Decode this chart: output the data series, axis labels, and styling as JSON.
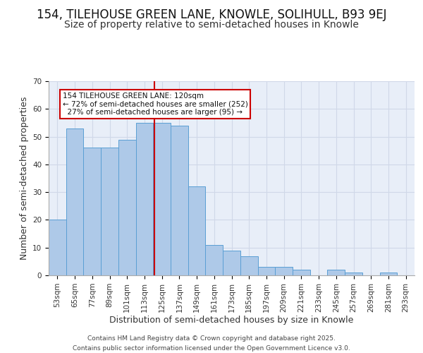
{
  "title_line1": "154, TILEHOUSE GREEN LANE, KNOWLE, SOLIHULL, B93 9EJ",
  "title_line2": "Size of property relative to semi-detached houses in Knowle",
  "xlabel": "Distribution of semi-detached houses by size in Knowle",
  "ylabel": "Number of semi-detached properties",
  "categories": [
    "53sqm",
    "65sqm",
    "77sqm",
    "89sqm",
    "101sqm",
    "113sqm",
    "125sqm",
    "137sqm",
    "149sqm",
    "161sqm",
    "173sqm",
    "185sqm",
    "197sqm",
    "209sqm",
    "221sqm",
    "233sqm",
    "245sqm",
    "257sqm",
    "269sqm",
    "281sqm",
    "293sqm"
  ],
  "values": [
    20,
    53,
    46,
    46,
    49,
    55,
    55,
    54,
    32,
    11,
    9,
    7,
    3,
    3,
    2,
    0,
    2,
    1,
    0,
    1,
    0
  ],
  "bar_color": "#aec9e8",
  "bar_edge_color": "#5a9fd4",
  "grid_color": "#d0d8e8",
  "background_color": "#e8eef8",
  "red_line_color": "#cc0000",
  "annotation_text": "154 TILEHOUSE GREEN LANE: 120sqm\n← 72% of semi-detached houses are smaller (252)\n  27% of semi-detached houses are larger (95) →",
  "annotation_box_color": "#ffffff",
  "annotation_box_edge_color": "#cc0000",
  "ylim": [
    0,
    70
  ],
  "yticks": [
    0,
    10,
    20,
    30,
    40,
    50,
    60,
    70
  ],
  "footer_text": "Contains HM Land Registry data © Crown copyright and database right 2025.\nContains public sector information licensed under the Open Government Licence v3.0.",
  "title_fontsize": 12,
  "subtitle_fontsize": 10,
  "axis_label_fontsize": 9,
  "tick_fontsize": 7.5,
  "annotation_fontsize": 7.5,
  "footer_fontsize": 6.5
}
